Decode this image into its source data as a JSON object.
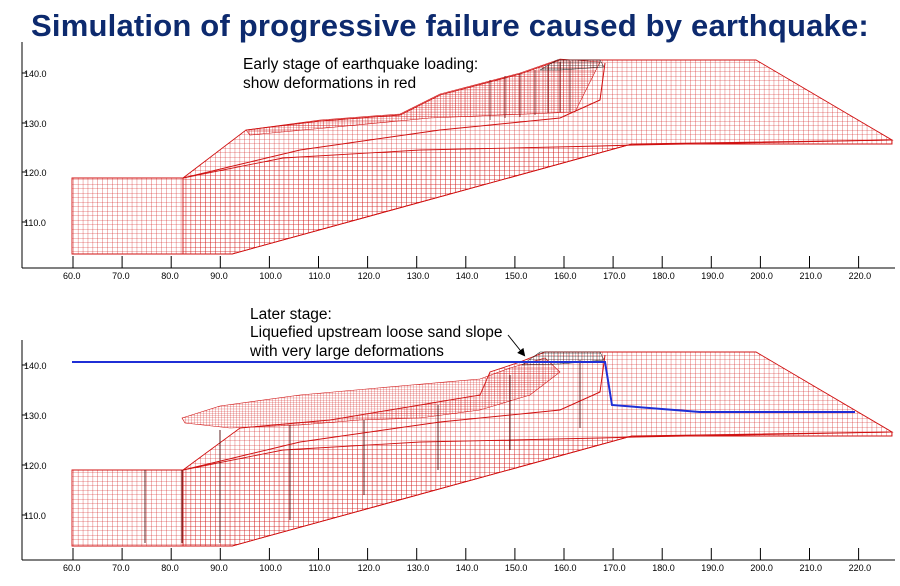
{
  "title": "Simulation of progressive failure caused by earthquake:",
  "annotations": {
    "top": [
      "Early stage of earthquake loading:",
      "show deformations in red"
    ],
    "bottom": [
      "Later stage:",
      "Liquefied upstream loose sand slope",
      "with very large deformations"
    ]
  },
  "colors": {
    "title": "#0d2a6e",
    "mesh": "#d01010",
    "dense_mesh": "#1a1a1a",
    "water_line": "#1f2fd6"
  },
  "panels": [
    {
      "id": "early",
      "x_ticks": [
        "60.0",
        "70.0",
        "80.0",
        "90.0",
        "100.0",
        "110.0",
        "120.0",
        "130.0",
        "140.0",
        "150.0",
        "160.0",
        "170.0",
        "180.0",
        "190.0",
        "200.0",
        "210.0",
        "220.0"
      ],
      "y_ticks": [
        "140.0",
        "130.0",
        "120.0",
        "110.0"
      ]
    },
    {
      "id": "later",
      "x_ticks": [
        "60.0",
        "70.0",
        "80.0",
        "90.0",
        "100.0",
        "110.0",
        "120.0",
        "130.0",
        "140.0",
        "150.0",
        "160.0",
        "170.0",
        "180.0",
        "190.0",
        "200.0",
        "210.0",
        "220.0"
      ],
      "y_ticks": [
        "140.0",
        "130.0",
        "120.0",
        "110.0"
      ]
    }
  ]
}
